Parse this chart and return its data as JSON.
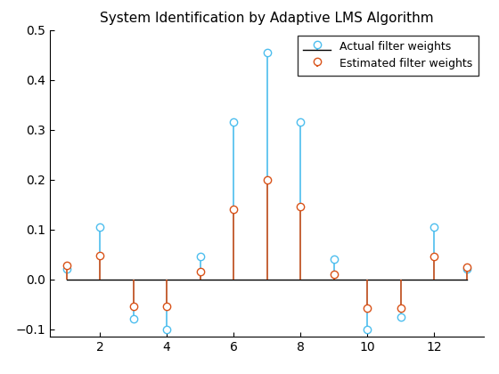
{
  "title": "System Identification by Adaptive LMS Algorithm",
  "actual_x": [
    1,
    2,
    3,
    4,
    5,
    6,
    7,
    8,
    9,
    10,
    11,
    12,
    13
  ],
  "actual_y": [
    0.02,
    0.105,
    -0.08,
    -0.1,
    0.045,
    0.315,
    0.455,
    0.315,
    0.04,
    -0.1,
    -0.075,
    0.105,
    0.02
  ],
  "estimated_x": [
    1,
    2,
    3,
    4,
    5,
    6,
    7,
    8,
    9,
    10,
    11,
    12,
    13
  ],
  "estimated_y": [
    0.028,
    0.048,
    -0.055,
    -0.055,
    0.015,
    0.14,
    0.2,
    0.145,
    0.01,
    -0.058,
    -0.058,
    0.045,
    0.025
  ],
  "actual_color": "#4DBEEE",
  "estimated_color": "#D95319",
  "actual_label": "Actual filter weights",
  "estimated_label": "Estimated filter weights",
  "xlim": [
    0.5,
    13.5
  ],
  "ylim": [
    -0.115,
    0.5
  ],
  "yticks": [
    -0.1,
    0.0,
    0.1,
    0.2,
    0.3,
    0.4,
    0.5
  ],
  "xticks": [
    2,
    4,
    6,
    8,
    10,
    12
  ],
  "title_fontsize": 11,
  "tick_fontsize": 10,
  "legend_fontsize": 9
}
